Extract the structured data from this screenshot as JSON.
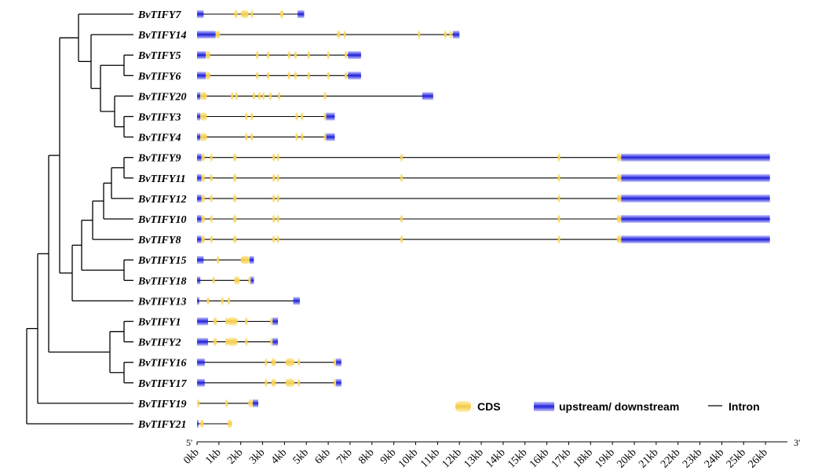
{
  "genes": [
    {
      "name": "BvTIFY7",
      "length_kb": 4.9,
      "utr": [
        [
          0,
          0.3
        ],
        [
          4.6,
          4.9
        ]
      ],
      "cds": [
        [
          1.7,
          1.85
        ],
        [
          2.0,
          2.35
        ],
        [
          2.45,
          2.55
        ],
        [
          3.8,
          3.95
        ]
      ]
    },
    {
      "name": "BvTIFY14",
      "length_kb": 12.0,
      "utr": [
        [
          0,
          0.85
        ],
        [
          11.7,
          12.0
        ]
      ],
      "cds": [
        [
          0.85,
          1.05
        ],
        [
          6.4,
          6.55
        ],
        [
          6.7,
          6.8
        ],
        [
          10.1,
          10.2
        ],
        [
          11.3,
          11.38
        ],
        [
          11.55,
          11.62
        ]
      ]
    },
    {
      "name": "BvTIFY5",
      "length_kb": 7.5,
      "utr": [
        [
          0,
          0.4
        ],
        [
          6.9,
          7.5
        ]
      ],
      "cds": [
        [
          0.4,
          0.6
        ],
        [
          2.7,
          2.8
        ],
        [
          3.2,
          3.3
        ],
        [
          4.15,
          4.25
        ],
        [
          4.45,
          4.55
        ],
        [
          5.05,
          5.12
        ],
        [
          5.95,
          6.05
        ],
        [
          6.75,
          6.85
        ]
      ]
    },
    {
      "name": "BvTIFY6",
      "length_kb": 7.5,
      "utr": [
        [
          0,
          0.4
        ],
        [
          6.9,
          7.5
        ]
      ],
      "cds": [
        [
          0.4,
          0.6
        ],
        [
          2.7,
          2.8
        ],
        [
          3.2,
          3.3
        ],
        [
          4.15,
          4.25
        ],
        [
          4.45,
          4.55
        ],
        [
          5.05,
          5.12
        ],
        [
          5.95,
          6.05
        ],
        [
          6.75,
          6.85
        ]
      ]
    },
    {
      "name": "BvTIFY20",
      "length_kb": 10.8,
      "utr": [
        [
          0,
          0.15
        ],
        [
          10.3,
          10.8
        ]
      ],
      "cds": [
        [
          0.15,
          0.45
        ],
        [
          1.55,
          1.65
        ],
        [
          1.75,
          1.82
        ],
        [
          2.55,
          2.62
        ],
        [
          2.8,
          2.88
        ],
        [
          2.98,
          3.06
        ],
        [
          3.3,
          3.38
        ],
        [
          3.7,
          3.78
        ],
        [
          5.8,
          5.88
        ]
      ]
    },
    {
      "name": "BvTIFY3",
      "length_kb": 6.3,
      "utr": [
        [
          0,
          0.15
        ],
        [
          5.9,
          6.3
        ]
      ],
      "cds": [
        [
          0.15,
          0.45
        ],
        [
          2.2,
          2.3
        ],
        [
          2.45,
          2.55
        ],
        [
          4.5,
          4.6
        ],
        [
          4.75,
          4.85
        ],
        [
          5.8,
          5.9
        ]
      ]
    },
    {
      "name": "BvTIFY4",
      "length_kb": 6.3,
      "utr": [
        [
          0,
          0.15
        ],
        [
          5.9,
          6.3
        ]
      ],
      "cds": [
        [
          0.15,
          0.45
        ],
        [
          2.2,
          2.3
        ],
        [
          2.45,
          2.55
        ],
        [
          4.5,
          4.6
        ],
        [
          4.75,
          4.85
        ],
        [
          5.8,
          5.9
        ]
      ]
    },
    {
      "name": "BvTIFY9",
      "length_kb": 26.2,
      "utr": [
        [
          0,
          0.2
        ],
        [
          19.4,
          26.2
        ]
      ],
      "cds": [
        [
          0.2,
          0.35
        ],
        [
          0.6,
          0.7
        ],
        [
          1.65,
          1.8
        ],
        [
          3.45,
          3.55
        ],
        [
          3.65,
          3.75
        ],
        [
          9.3,
          9.36
        ],
        [
          16.5,
          16.56
        ],
        [
          19.2,
          19.4
        ]
      ]
    },
    {
      "name": "BvTIFY11",
      "length_kb": 26.2,
      "utr": [
        [
          0,
          0.2
        ],
        [
          19.4,
          26.2
        ]
      ],
      "cds": [
        [
          0.2,
          0.35
        ],
        [
          0.6,
          0.7
        ],
        [
          1.65,
          1.8
        ],
        [
          3.45,
          3.55
        ],
        [
          3.65,
          3.75
        ],
        [
          9.3,
          9.36
        ],
        [
          16.5,
          16.56
        ],
        [
          19.2,
          19.4
        ]
      ]
    },
    {
      "name": "BvTIFY12",
      "length_kb": 26.2,
      "utr": [
        [
          0,
          0.2
        ],
        [
          19.4,
          26.2
        ]
      ],
      "cds": [
        [
          0.2,
          0.35
        ],
        [
          0.6,
          0.7
        ],
        [
          1.65,
          1.8
        ],
        [
          3.45,
          3.55
        ],
        [
          3.65,
          3.75
        ],
        [
          16.5,
          16.56
        ],
        [
          19.2,
          19.4
        ]
      ]
    },
    {
      "name": "BvTIFY10",
      "length_kb": 26.2,
      "utr": [
        [
          0,
          0.2
        ],
        [
          19.4,
          26.2
        ]
      ],
      "cds": [
        [
          0.2,
          0.35
        ],
        [
          0.6,
          0.7
        ],
        [
          1.65,
          1.8
        ],
        [
          3.45,
          3.55
        ],
        [
          3.65,
          3.75
        ],
        [
          9.3,
          9.36
        ],
        [
          16.5,
          16.56
        ],
        [
          19.2,
          19.4
        ]
      ]
    },
    {
      "name": "BvTIFY8",
      "length_kb": 26.2,
      "utr": [
        [
          0,
          0.2
        ],
        [
          19.4,
          26.2
        ]
      ],
      "cds": [
        [
          0.2,
          0.35
        ],
        [
          0.6,
          0.7
        ],
        [
          1.65,
          1.8
        ],
        [
          3.45,
          3.55
        ],
        [
          3.65,
          3.75
        ],
        [
          9.3,
          9.36
        ],
        [
          16.5,
          16.56
        ],
        [
          19.2,
          19.4
        ]
      ]
    },
    {
      "name": "BvTIFY15",
      "length_kb": 2.6,
      "utr": [
        [
          0,
          0.3
        ],
        [
          2.4,
          2.6
        ]
      ],
      "cds": [
        [
          0.9,
          1.0
        ],
        [
          2.0,
          2.4
        ]
      ]
    },
    {
      "name": "BvTIFY18",
      "length_kb": 2.6,
      "utr": [
        [
          0,
          0.15
        ],
        [
          2.4,
          2.6
        ]
      ],
      "cds": [
        [
          0.7,
          0.78
        ],
        [
          1.7,
          1.95
        ],
        [
          2.35,
          2.45
        ]
      ]
    },
    {
      "name": "BvTIFY13",
      "length_kb": 4.7,
      "utr": [
        [
          0,
          0.1
        ],
        [
          4.4,
          4.7
        ]
      ],
      "cds": [
        [
          0.45,
          0.55
        ],
        [
          1.1,
          1.18
        ],
        [
          1.4,
          1.48
        ]
      ]
    },
    {
      "name": "BvTIFY1",
      "length_kb": 3.7,
      "utr": [
        [
          0,
          0.5
        ],
        [
          3.45,
          3.7
        ]
      ],
      "cds": [
        [
          0.75,
          0.9
        ],
        [
          1.3,
          1.38
        ],
        [
          1.4,
          1.85
        ],
        [
          2.2,
          2.28
        ],
        [
          3.35,
          3.45
        ]
      ]
    },
    {
      "name": "BvTIFY2",
      "length_kb": 3.7,
      "utr": [
        [
          0,
          0.5
        ],
        [
          3.45,
          3.7
        ]
      ],
      "cds": [
        [
          0.75,
          0.9
        ],
        [
          1.3,
          1.38
        ],
        [
          1.4,
          1.85
        ],
        [
          2.2,
          2.28
        ],
        [
          3.35,
          3.45
        ]
      ]
    },
    {
      "name": "BvTIFY16",
      "length_kb": 6.6,
      "utr": [
        [
          0,
          0.35
        ],
        [
          6.35,
          6.6
        ]
      ],
      "cds": [
        [
          3.1,
          3.2
        ],
        [
          3.4,
          3.6
        ],
        [
          4.05,
          4.45
        ],
        [
          4.6,
          4.7
        ],
        [
          6.25,
          6.35
        ]
      ]
    },
    {
      "name": "BvTIFY17",
      "length_kb": 6.6,
      "utr": [
        [
          0,
          0.35
        ],
        [
          6.35,
          6.6
        ]
      ],
      "cds": [
        [
          3.1,
          3.2
        ],
        [
          3.4,
          3.6
        ],
        [
          4.05,
          4.45
        ],
        [
          4.6,
          4.7
        ],
        [
          6.25,
          6.35
        ]
      ]
    },
    {
      "name": "BvTIFY19",
      "length_kb": 2.8,
      "utr": [
        [
          2.55,
          2.8
        ]
      ],
      "cds": [
        [
          0,
          0.08
        ],
        [
          1.3,
          1.38
        ],
        [
          2.35,
          2.55
        ]
      ]
    },
    {
      "name": "BvTIFY21",
      "length_kb": 1.6,
      "utr": [
        [
          0,
          0.05
        ]
      ],
      "cds": [
        [
          0.15,
          0.3
        ],
        [
          1.4,
          1.6
        ]
      ]
    }
  ],
  "axis": {
    "min_kb": 0,
    "max_kb": 27,
    "tick_labels": [
      "0kb",
      "1kb",
      "2kb",
      "3kb",
      "4kb",
      "5kb",
      "6kb",
      "7kb",
      "8kb",
      "9kb",
      "10kb",
      "11kb",
      "12kb",
      "13kb",
      "14kb",
      "15kb",
      "16kb",
      "17kb",
      "18kb",
      "19kb",
      "20kb",
      "21kb",
      "22kb",
      "23kb",
      "24kb",
      "25kb",
      "26kb"
    ],
    "start_label": "5'",
    "end_label": "3'"
  },
  "legend": {
    "cds_label": "CDS",
    "utr_label": "upstream/ downstream",
    "intron_label": "Intron"
  },
  "colors": {
    "cds_light": "#fff3b0",
    "cds_dark": "#f2c94c",
    "utr_light": "#c8c8ff",
    "utr_dark": "#2020d8",
    "line": "#000000"
  }
}
